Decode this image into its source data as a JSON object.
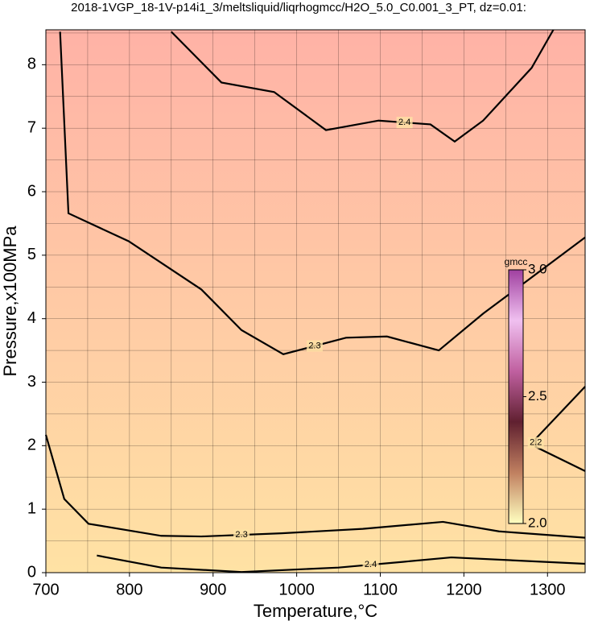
{
  "chart_data": {
    "type": "contour",
    "title": "2018-1VGP_18-1V-p14i1_3/meltsliquid/liqrhogmcc/H2O_5.0_C0.001_3_PT, dz=0.01:",
    "x_label": "Temperature,°C",
    "y_label": "Pressure,x100MPa",
    "xlim": [
      700,
      1345
    ],
    "ylim": [
      0,
      8.55
    ],
    "xticks": [
      700,
      800,
      900,
      1000,
      1100,
      1200,
      1300
    ],
    "yticks": [
      0,
      1,
      2,
      3,
      4,
      5,
      6,
      7,
      8
    ],
    "grid": true,
    "xgrid": [
      750,
      800,
      850,
      900,
      950,
      1000,
      1050,
      1100,
      1150,
      1200,
      1250,
      1300
    ],
    "ygrid": [
      0.5,
      1,
      1.5,
      2,
      2.5,
      3,
      3.5,
      4,
      4.5,
      5,
      5.5,
      6,
      6.5,
      7,
      7.5,
      8,
      8.5
    ],
    "background_top": "#ffb2a6",
    "background_bottom": "#ffe2a4",
    "contours": [
      {
        "level": 2.4,
        "x": [
          850,
          910,
          973,
          1035,
          1098,
          1160,
          1189,
          1223,
          1281,
          1307
        ],
        "y": [
          8.52,
          7.72,
          7.57,
          6.97,
          7.12,
          7.06,
          6.79,
          7.12,
          7.95,
          8.55
        ]
      },
      {
        "level": 2.3,
        "x": [
          717,
          727,
          799,
          886,
          934,
          984,
          1059,
          1108,
          1170,
          1223,
          1345
        ],
        "y": [
          8.52,
          5.66,
          5.22,
          4.46,
          3.82,
          3.44,
          3.7,
          3.72,
          3.5,
          4.08,
          5.28
        ]
      },
      {
        "level": 2.3,
        "x": [
          700,
          722,
          751,
          838,
          886,
          982,
          1079,
          1175,
          1242,
          1345
        ],
        "y": [
          2.17,
          1.16,
          0.77,
          0.58,
          0.57,
          0.62,
          0.69,
          0.8,
          0.65,
          0.55
        ]
      },
      {
        "level": 2.4,
        "x": [
          761,
          838,
          934,
          1050,
          1127,
          1185,
          1345
        ],
        "y": [
          0.27,
          0.08,
          0.01,
          0.08,
          0.17,
          0.24,
          0.14
        ]
      },
      {
        "level": 2.2,
        "x": [
          1345,
          1286,
          1286,
          1345
        ],
        "y": [
          2.93,
          2.11,
          1.98,
          1.6
        ]
      }
    ],
    "contour_color": "#000000",
    "colorbar": {
      "label": "gmcc",
      "lim": [
        2,
        3
      ],
      "ticks": [
        {
          "value": 2,
          "label": "2.0"
        },
        2.5,
        {
          "value": 3,
          "label": "3.0"
        }
      ],
      "colors": [
        "#ffffc0",
        "#c08060",
        "#602030",
        "#c060a0",
        "#f0c0f0",
        "#a040a0"
      ]
    }
  }
}
